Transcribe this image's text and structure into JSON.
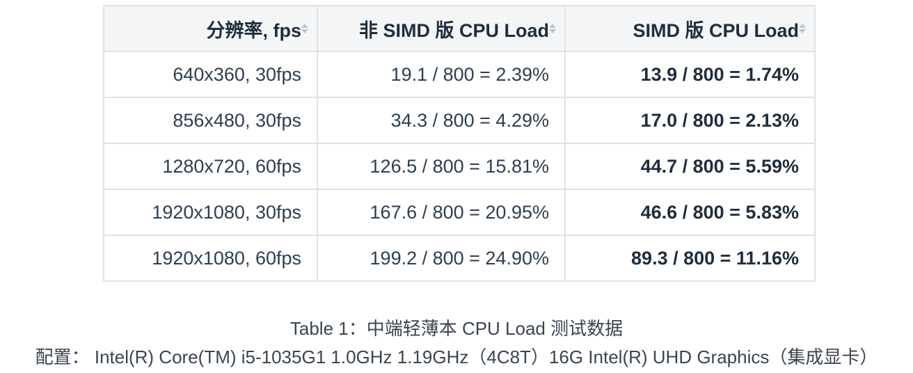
{
  "table": {
    "headers": [
      "分辨率, fps",
      "非 SIMD 版 CPU Load",
      "SIMD 版 CPU Load"
    ],
    "rows": [
      [
        "640x360, 30fps",
        "19.1 / 800 = 2.39%",
        "13.9 / 800 = 1.74%"
      ],
      [
        "856x480, 30fps",
        "34.3 / 800 = 4.29%",
        "17.0 / 800 = 2.13%"
      ],
      [
        "1280x720, 60fps",
        "126.5 / 800 = 15.81%",
        "44.7 / 800 = 5.59%"
      ],
      [
        "1920x1080, 30fps",
        "167.6 / 800 = 20.95%",
        "46.6 / 800 = 5.83%"
      ],
      [
        "1920x1080, 60fps",
        "199.2 / 800 = 24.90%",
        "89.3 / 800 = 11.16%"
      ]
    ]
  },
  "caption": {
    "title": "Table 1：中端轻薄本 CPU Load 测试数据",
    "config": "配置： Intel(R) Core(TM) i5-1035G1 1.0GHz 1.19GHz（4C8T）16G Intel(R) UHD Graphics（集成显卡）"
  }
}
